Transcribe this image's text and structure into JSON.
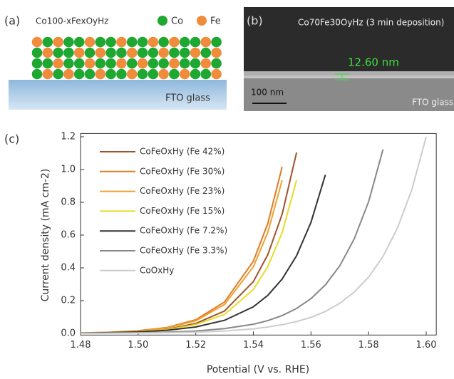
{
  "panels": {
    "a": {
      "label": "(a)",
      "formula": "Co100-xFexOyHz",
      "legend": [
        "Co",
        "Fe"
      ],
      "substrate": "FTO glass"
    },
    "b": {
      "label": "(b)",
      "caption": "Co70Fe30OyHz (3 min deposition)",
      "thickness": "12.60 nm",
      "scale": "100 nm",
      "substrate": "FTO glass"
    },
    "c": {
      "label": "(c)"
    }
  },
  "chart_data": {
    "type": "line",
    "x_label": "Potential (V vs. RHE)",
    "y_label": "Current density (mA cm-2)",
    "x": [
      1.48,
      1.49,
      1.5,
      1.51,
      1.52,
      1.53,
      1.54,
      1.545,
      1.55,
      1.555,
      1.56,
      1.565,
      1.57,
      1.575,
      1.58,
      1.585,
      1.59,
      1.595,
      1.6
    ],
    "xlim": [
      1.48,
      1.6035
    ],
    "ylim": [
      -0.01,
      1.22
    ],
    "xticks": [
      1.48,
      {
        "value": 1.5,
        "label": "1.50"
      },
      1.52,
      1.54,
      1.56,
      1.58,
      {
        "value": 1.6,
        "label": "1.60"
      }
    ],
    "yticks": [
      {
        "value": 0,
        "label": "0.0"
      },
      0.2,
      0.4,
      0.6,
      0.8,
      {
        "value": 1,
        "label": "1.0"
      },
      1.2
    ],
    "series": [
      {
        "name": "CoFeOxHy (Fe 42%)",
        "color": "#a0522d",
        "values": [
          0.002,
          0.005,
          0.011,
          0.025,
          0.061,
          0.137,
          0.316,
          0.48,
          0.728,
          1.104,
          null,
          null,
          null,
          null,
          null,
          null,
          null,
          null,
          null
        ]
      },
      {
        "name": "CoFeOxHy (Fe 30%)",
        "color": "#e07b20",
        "values": [
          0.003,
          0.007,
          0.016,
          0.036,
          0.083,
          0.192,
          0.441,
          0.67,
          1.016,
          null,
          null,
          null,
          null,
          null,
          null,
          null,
          null,
          null,
          null
        ]
      },
      {
        "name": "CoFeOxHy (Fe 23%)",
        "color": "#f0a030",
        "values": [
          0.003,
          0.006,
          0.014,
          0.033,
          0.077,
          0.177,
          0.407,
          0.616,
          0.935,
          null,
          null,
          null,
          null,
          null,
          null,
          null,
          null,
          null,
          null
        ]
      },
      {
        "name": "CoFeOxHy (Fe 15%)",
        "color": "#e6dc28",
        "values": [
          0.002,
          0.004,
          0.01,
          0.022,
          0.054,
          0.116,
          0.268,
          0.407,
          0.616,
          0.935,
          null,
          null,
          null,
          null,
          null,
          null,
          null,
          null,
          null
        ]
      },
      {
        "name": "CoFeOxHy (Fe 7.2%)",
        "color": "#333333",
        "values": [
          0.002,
          0.005,
          0.009,
          0.019,
          0.039,
          0.08,
          0.162,
          0.232,
          0.332,
          0.474,
          0.678,
          0.968,
          null,
          null,
          null,
          null,
          null,
          null,
          null
        ]
      },
      {
        "name": "CoFeOxHy (Fe 3.3%)",
        "color": "#888888",
        "values": [
          0.001,
          0.002,
          0.004,
          0.008,
          0.015,
          0.029,
          0.056,
          0.078,
          0.109,
          0.152,
          0.212,
          0.296,
          0.413,
          0.577,
          0.804,
          1.123,
          null,
          null,
          null
        ]
      },
      {
        "name": "CoOxHy",
        "color": "#cccccc",
        "values": [
          0.001,
          0.001,
          0.002,
          0.004,
          0.008,
          0.015,
          0.028,
          0.039,
          0.053,
          0.072,
          0.098,
          0.134,
          0.184,
          0.252,
          0.344,
          0.47,
          0.642,
          0.877,
          1.2
        ]
      }
    ]
  }
}
